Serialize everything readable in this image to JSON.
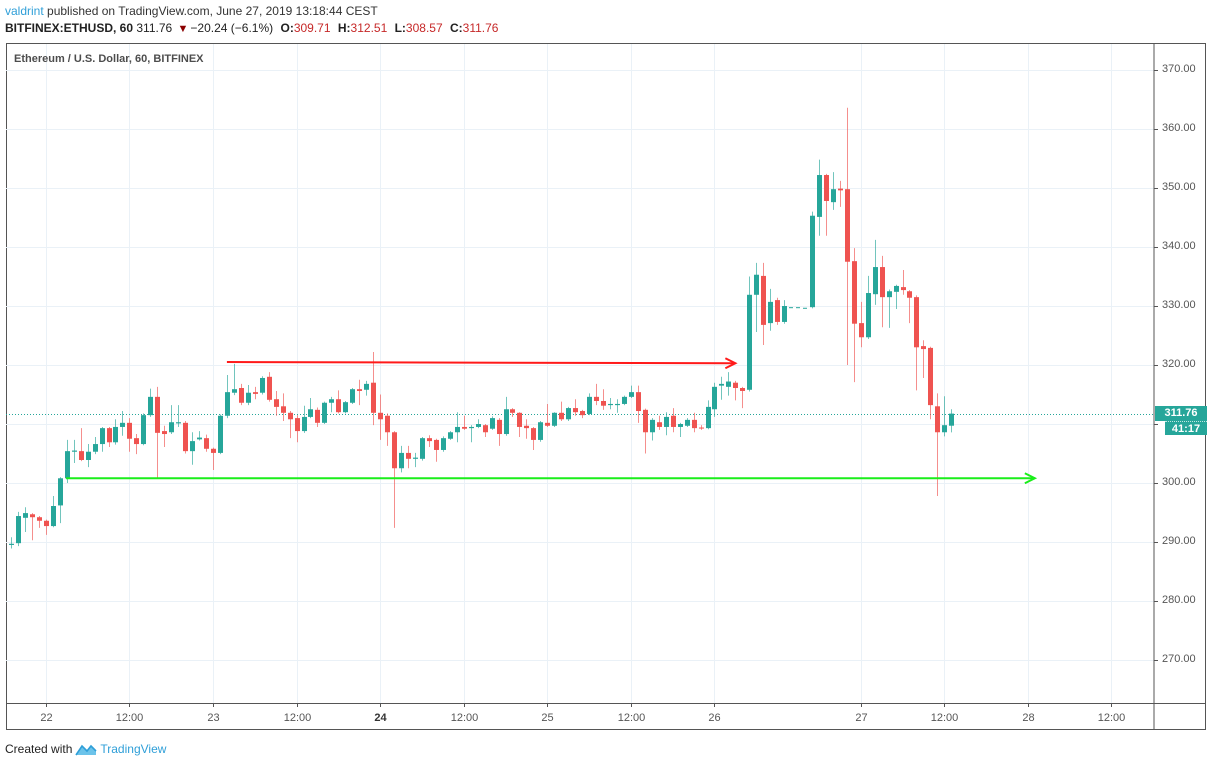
{
  "header": {
    "author": "valdrint",
    "published_text": "published on TradingView.com, June 27, 2019 13:18:44 CEST",
    "symbol": "BITFINEX:ETHUSD, 60",
    "last": "311.76",
    "direction_icon": "down-triangle",
    "change": "−20.24 (−6.1%)",
    "ohlc": {
      "o_label": "O:",
      "o": "309.71",
      "h_label": "H:",
      "h": "312.51",
      "l_label": "L:",
      "l": "308.57",
      "c_label": "C:",
      "c": "311.76"
    }
  },
  "legend": "Ethereum / U.S. Dollar, 60, BITFINEX",
  "price_label": {
    "value": "311.76",
    "countdown": "41:17"
  },
  "footer": {
    "created_with": "Created with",
    "brand": "TradingView",
    "logo_icon": "tradingview-logo-icon"
  },
  "colors": {
    "up": "#26a69a",
    "down": "#ef5350",
    "resistance_arrow": "#ff1a1a",
    "support_arrow": "#1aee1a",
    "grid": "#eaf1f7",
    "header_values": "#c62828",
    "brand_blue": "#2f9fd8"
  },
  "chart_data": {
    "type": "candlestick",
    "title": "Ethereum / U.S. Dollar, 60, BITFINEX",
    "xlabel": "",
    "ylabel": "",
    "ylim": [
      262,
      375
    ],
    "grid": true,
    "legend_position": "top-left",
    "y_ticks": [
      "370.00",
      "360.00",
      "350.00",
      "340.00",
      "330.00",
      "320.00",
      "300.00",
      "290.00",
      "280.00",
      "270.00"
    ],
    "y_grid": [
      370,
      360,
      350,
      340,
      330,
      320,
      310,
      300,
      290,
      280,
      270
    ],
    "x_ticks": [
      {
        "label": "22",
        "i": 5
      },
      {
        "label": "12:00",
        "i": 17
      },
      {
        "label": "23",
        "i": 29
      },
      {
        "label": "12:00",
        "i": 41
      },
      {
        "label": "24",
        "i": 53,
        "strong": true
      },
      {
        "label": "12:00",
        "i": 65
      },
      {
        "label": "25",
        "i": 77
      },
      {
        "label": "12:00",
        "i": 89
      },
      {
        "label": "26",
        "i": 101
      },
      {
        "label": "27",
        "i": 122
      },
      {
        "label": "12:00",
        "i": 134
      },
      {
        "label": "28",
        "i": 146
      },
      {
        "label": "12:00",
        "i": 158
      }
    ],
    "last_price": 311.76,
    "annotations": [
      {
        "name": "resistance-arrow",
        "color": "#ff1a1a",
        "i_start": 31,
        "p_start": 320.5,
        "i_end": 104,
        "p_end": 320.3
      },
      {
        "name": "support-arrow",
        "color": "#1aee1a",
        "i_start": 7.9,
        "p_start": 300.8,
        "i_end": 147,
        "p_end": 300.8
      }
    ],
    "candles_ohlc": [
      [
        289.5,
        290.8,
        288.9,
        289.7
      ],
      [
        289.8,
        295.1,
        289.3,
        294.4
      ],
      [
        294.1,
        295.9,
        291.7,
        294.9
      ],
      [
        294.7,
        294.9,
        290.3,
        294.2
      ],
      [
        294.2,
        294.4,
        292.4,
        293.6
      ],
      [
        293.6,
        293.8,
        291.2,
        292.7
      ],
      [
        292.7,
        297.8,
        292.5,
        296.1
      ],
      [
        296.2,
        301.0,
        293.2,
        300.8
      ],
      [
        300.8,
        307.3,
        300.0,
        305.4
      ],
      [
        305.3,
        307.3,
        303.4,
        305.5
      ],
      [
        305.4,
        309.3,
        303.7,
        303.9
      ],
      [
        303.9,
        306.6,
        302.7,
        305.3
      ],
      [
        305.3,
        307.8,
        304.9,
        306.6
      ],
      [
        306.6,
        309.5,
        305.3,
        309.3
      ],
      [
        309.3,
        309.5,
        306.1,
        306.9
      ],
      [
        306.9,
        310.8,
        306.5,
        309.5
      ],
      [
        309.5,
        312.2,
        308.0,
        310.2
      ],
      [
        310.2,
        311.0,
        305.3,
        307.5
      ],
      [
        307.6,
        308.3,
        304.9,
        306.6
      ],
      [
        306.6,
        311.8,
        306.4,
        311.5
      ],
      [
        311.5,
        316.0,
        311.2,
        314.6
      ],
      [
        314.6,
        316.3,
        300.8,
        308.5
      ],
      [
        308.8,
        309.7,
        306.1,
        308.3
      ],
      [
        308.6,
        313.2,
        308.3,
        310.3
      ],
      [
        310.1,
        313.2,
        309.5,
        310.3
      ],
      [
        310.2,
        310.5,
        305.0,
        305.4
      ],
      [
        305.4,
        308.6,
        303.1,
        307.1
      ],
      [
        307.4,
        308.8,
        307.2,
        307.7
      ],
      [
        307.6,
        308.2,
        305.3,
        305.8
      ],
      [
        305.8,
        306.0,
        302.2,
        305.1
      ],
      [
        305.1,
        311.6,
        304.9,
        311.4
      ],
      [
        311.4,
        318.3,
        311.0,
        315.4
      ],
      [
        315.3,
        320.2,
        314.9,
        315.9
      ],
      [
        316.1,
        316.8,
        313.2,
        313.6
      ],
      [
        313.6,
        316.6,
        313.2,
        315.3
      ],
      [
        315.4,
        316.3,
        314.2,
        315.1
      ],
      [
        315.3,
        318.1,
        315.0,
        317.8
      ],
      [
        318.0,
        318.8,
        313.8,
        314.1
      ],
      [
        314.2,
        315.6,
        311.4,
        312.9
      ],
      [
        313.0,
        315.2,
        310.5,
        311.9
      ],
      [
        311.9,
        312.2,
        307.6,
        310.8
      ],
      [
        311.0,
        311.5,
        306.9,
        308.8
      ],
      [
        308.8,
        313.1,
        308.5,
        311.2
      ],
      [
        311.2,
        314.4,
        311.0,
        312.5
      ],
      [
        312.4,
        312.8,
        309.5,
        310.2
      ],
      [
        310.2,
        313.8,
        310.0,
        313.6
      ],
      [
        313.6,
        314.6,
        312.0,
        314.2
      ],
      [
        314.2,
        315.7,
        311.8,
        312.0
      ],
      [
        312.0,
        313.9,
        311.8,
        313.7
      ],
      [
        313.6,
        316.1,
        313.4,
        315.9
      ],
      [
        315.9,
        317.5,
        313.2,
        315.6
      ],
      [
        315.8,
        317.3,
        314.8,
        316.8
      ],
      [
        317.0,
        322.2,
        309.8,
        311.9
      ],
      [
        311.9,
        315.0,
        307.3,
        310.8
      ],
      [
        311.4,
        311.8,
        306.3,
        308.6
      ],
      [
        308.6,
        308.8,
        292.4,
        302.5
      ],
      [
        302.5,
        306.3,
        301.8,
        305.1
      ],
      [
        305.1,
        306.3,
        302.5,
        304.1
      ],
      [
        304.1,
        305.1,
        302.7,
        304.3
      ],
      [
        304.1,
        307.8,
        303.8,
        307.6
      ],
      [
        307.6,
        308.1,
        306.1,
        307.1
      ],
      [
        307.3,
        307.5,
        303.6,
        305.6
      ],
      [
        305.6,
        307.9,
        305.3,
        307.6
      ],
      [
        307.5,
        308.8,
        307.3,
        308.6
      ],
      [
        308.6,
        312.0,
        306.9,
        309.5
      ],
      [
        309.5,
        311.4,
        309.0,
        309.2
      ],
      [
        309.3,
        309.8,
        306.9,
        309.5
      ],
      [
        309.5,
        310.8,
        309.3,
        310.0
      ],
      [
        309.8,
        310.0,
        307.8,
        308.6
      ],
      [
        309.2,
        311.3,
        309.0,
        311.0
      ],
      [
        310.7,
        311.0,
        306.3,
        308.3
      ],
      [
        308.3,
        314.6,
        308.0,
        312.5
      ],
      [
        312.5,
        312.7,
        311.2,
        311.9
      ],
      [
        311.9,
        312.0,
        307.8,
        309.5
      ],
      [
        309.7,
        310.8,
        307.5,
        309.3
      ],
      [
        309.3,
        309.5,
        305.6,
        307.3
      ],
      [
        307.3,
        310.5,
        307.0,
        310.3
      ],
      [
        310.2,
        313.4,
        309.5,
        309.7
      ],
      [
        309.7,
        312.0,
        309.5,
        311.9
      ],
      [
        311.9,
        313.8,
        310.5,
        310.8
      ],
      [
        310.8,
        312.9,
        310.5,
        312.7
      ],
      [
        312.7,
        314.2,
        311.4,
        312.0
      ],
      [
        312.2,
        312.4,
        311.0,
        311.5
      ],
      [
        311.7,
        315.2,
        311.5,
        314.6
      ],
      [
        314.6,
        316.8,
        313.2,
        313.9
      ],
      [
        313.9,
        315.9,
        312.4,
        313.1
      ],
      [
        313.2,
        314.4,
        312.5,
        313.4
      ],
      [
        313.2,
        314.2,
        311.9,
        313.4
      ],
      [
        313.4,
        314.8,
        313.2,
        314.6
      ],
      [
        314.6,
        316.5,
        314.4,
        315.4
      ],
      [
        315.4,
        316.5,
        310.2,
        312.2
      ],
      [
        312.4,
        312.6,
        305.0,
        308.6
      ],
      [
        308.6,
        311.0,
        307.2,
        310.7
      ],
      [
        310.3,
        311.4,
        309.0,
        309.5
      ],
      [
        309.5,
        312.0,
        308.1,
        311.2
      ],
      [
        311.4,
        312.7,
        308.6,
        309.5
      ],
      [
        309.5,
        310.2,
        307.8,
        310.0
      ],
      [
        309.7,
        311.0,
        309.5,
        310.7
      ],
      [
        310.7,
        311.9,
        308.6,
        309.3
      ],
      [
        309.4,
        309.8,
        309.0,
        309.3
      ],
      [
        309.3,
        314.0,
        309.1,
        312.9
      ],
      [
        312.5,
        317.0,
        311.2,
        316.3
      ],
      [
        316.5,
        318.0,
        314.1,
        316.8
      ],
      [
        316.3,
        318.8,
        314.8,
        317.2
      ],
      [
        317.0,
        317.3,
        314.0,
        316.1
      ],
      [
        316.1,
        316.3,
        312.7,
        315.6
      ],
      [
        315.8,
        335.0,
        315.5,
        331.9
      ],
      [
        331.9,
        337.3,
        325.6,
        335.3
      ],
      [
        335.1,
        337.3,
        323.4,
        326.8
      ],
      [
        327.1,
        332.9,
        325.8,
        330.7
      ],
      [
        331.0,
        331.4,
        326.8,
        327.3
      ],
      [
        327.3,
        331.0,
        327.0,
        330.0
      ],
      [
        329.8,
        329.8,
        329.8,
        329.8
      ],
      [
        329.8,
        329.8,
        329.8,
        329.8
      ],
      [
        329.7,
        329.7,
        329.7,
        329.7
      ],
      [
        329.8,
        346.0,
        329.6,
        345.3
      ],
      [
        345.1,
        354.8,
        341.9,
        352.2
      ],
      [
        352.2,
        352.4,
        341.9,
        347.8
      ],
      [
        347.6,
        352.7,
        346.3,
        349.8
      ],
      [
        349.9,
        351.2,
        346.8,
        349.6
      ],
      [
        349.8,
        363.6,
        320.0,
        337.5
      ],
      [
        337.6,
        339.8,
        317.1,
        327.0
      ],
      [
        327.1,
        330.7,
        323.0,
        324.7
      ],
      [
        324.7,
        335.1,
        324.4,
        332.2
      ],
      [
        332.0,
        341.2,
        330.2,
        336.6
      ],
      [
        336.6,
        338.5,
        326.4,
        331.5
      ],
      [
        331.5,
        332.8,
        326.3,
        332.5
      ],
      [
        332.4,
        333.6,
        329.5,
        333.4
      ],
      [
        333.2,
        336.1,
        331.9,
        332.7
      ],
      [
        332.5,
        332.7,
        327.1,
        331.4
      ],
      [
        331.5,
        331.8,
        315.7,
        323.0
      ],
      [
        323.2,
        324.2,
        317.8,
        322.7
      ],
      [
        322.9,
        323.1,
        310.8,
        313.2
      ],
      [
        313.0,
        315.2,
        297.8,
        308.6
      ],
      [
        308.6,
        314.7,
        307.9,
        309.8
      ],
      [
        309.71,
        312.51,
        308.57,
        311.76
      ]
    ]
  }
}
